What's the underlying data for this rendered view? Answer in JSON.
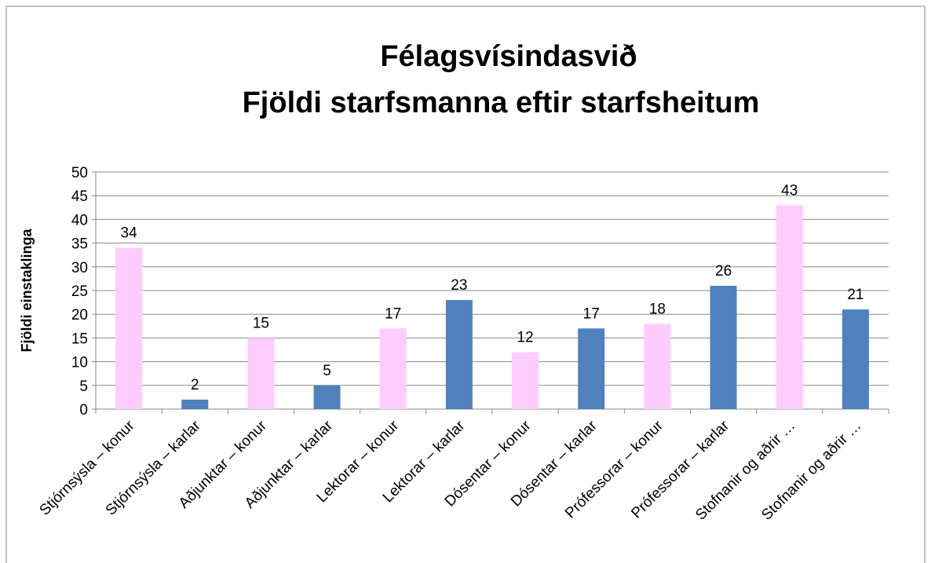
{
  "chart_data": {
    "type": "bar",
    "title": [
      "Félagsvísindasvið",
      "Fjöldi starfsmanna eftir starfsheitum"
    ],
    "y_label": "Fjöldi einstaklinga",
    "categories": [
      "Stjórnsýsla – konur",
      "Stjórnsýsla – karlar",
      "Aðjunktar – konur",
      "Aðjunktar – karlar",
      "Lektorar – konur",
      "Lektorar – karlar",
      "Dósentar – konur",
      "Dósentar – karlar",
      "Prófessorar – konur",
      "Prófessorar – karlar",
      "Stofnanir og aðrir …",
      "Stofnanir og aðrir …"
    ],
    "values": [
      34,
      2,
      15,
      5,
      17,
      23,
      12,
      17,
      18,
      26,
      43,
      21
    ],
    "colors": [
      "#ffccff",
      "#4f81bd",
      "#ffccff",
      "#4f81bd",
      "#ffccff",
      "#4f81bd",
      "#ffccff",
      "#4f81bd",
      "#ffccff",
      "#4f81bd",
      "#ffccff",
      "#4f81bd"
    ],
    "ylim": [
      0,
      50
    ],
    "yticks": [
      0,
      5,
      10,
      15,
      20,
      25,
      30,
      35,
      40,
      45,
      50
    ],
    "grid": true,
    "data_labels": true
  }
}
